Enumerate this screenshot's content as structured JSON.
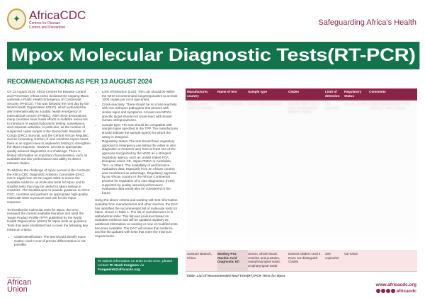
{
  "header": {
    "brand": "AfricaCDC",
    "brand_sub": "Centres for Disease Control and Prevention",
    "tagline": "Safeguarding Africa’s Health"
  },
  "title": "Mpox Molecular Diagnostic Tests(RT-PCR)",
  "subtitle": "RECOMMENDATIONS AS PER 13 AUGUST 2024",
  "col1": {
    "p1": "On 13 August 2024, Africa Centres for Disease Control and Prevention (Africa CDC) declared the ongoing Mpox outbreak a Public Health Emergency of Continental Security (PHECS). This was followed the next day by the World Health Organization (WHO), which extended the alert internationally as a public health emergency of international concern (PHEIC). After these declarations, many countries have made efforts to mobilize resources to introduce or expand laboratory testing, surveillance, and response activities. In particular, as the number of suspected cases surges in the Democratic Republic of Congo (DRC), Burundi, and the Central African Republic, and an increasing number of new countries report cases, there is an urgent need to implement testing to strengthen the Mpox response. However, access to appropriate quality assured diagnostics is a challenge. There is limited information on important characteristics, such as available test kits' performance and ability to detect relevant clades.",
    "p2": "To address the challenge of mpox access in the continent, the Africa CDC Diagnostic Advisory Committee (DAC) met in Kigali from 19-23 August 2024 to review the available evidence on molecular tests for Mpox and to shortlist tests that may be useful for Mpox testing in countries. The shortlist aims to provide guidance to Africa CDC, countries and partners on appropriate high-quality molecular tests to procure and use for the mpox response.",
    "p3": "To shortlist the molecular tests for Mpox, the DAC reviewed the current available literature and used the Target Product Profile (TPP) published by the World Health Organization (WHO) for Mpox tests as guidance. Tests that were shortlisted had to meet the following key minimum criteria:",
    "bullet": "Clade identification: The test should identify mpox clades I and II even if precise differentiation is not possible."
  },
  "col2": {
    "bullets": [
      "Limit of Detection (LoD): The LoD should be within the WHO recommended range(equivalent to at least 1000 copies per ml of specimen).",
      "Cross-reactivity: There should be no cross-reactivity with non-orthopox pathogens that present with similar signs and symptoms. At least one MPXV-specific target should not cross-react with known human orthopoxviruses.",
      "Sample type: The test should be compatible with sample types specified in the TPP. The manufacturer should indicate the sample type(s) for which the assay is designed.",
      "Regulatory status: The test should have regulatory approval or emergency use listing (for either in vitro diagnostic or research use) from at least one of the agencies recognized by the WHO as a stringent regulatory agency, such as United States FDA, European Union CE, Japan PMDA or Australian TGA, or others. The availability of performance evaluation data, especially from an African country, was considered an advantage. Regulatory approval by an African country or the African Continental process for regulation of in vitro diagnostics (IVDs) supported by quality assured performance evaluation data would also be considered in the future."
    ],
    "p": "Using the above criteria and working with test information available from manufacturers and other sources, the DAC has identified the recommended list of molecular tests for Mpox, shown in Table 1. The list of manufacturers is in alphabetical order. This list was produced based on available evidence and will be updated regularly as additional information on existing or new of modified tests becomes available. The DAC will review this evidence, and the list updated with tests that meet the minimum requirements.",
    "contact_pre": "To submit information on tests to the DAC, please contact ",
    "contact_name": "Dr Noah Fongwen",
    "contact_mid": " via ",
    "contact_email": "FongwenN@africacdc.org."
  },
  "table": {
    "headers": [
      "Manufacturer, country",
      "Name of test",
      "Sample type",
      "Clades",
      "Limit of detection",
      "Regulatory Status",
      "Comments"
    ],
    "faded_row": [
      "Abbott, United States of America",
      "ALINITY M MPXV",
      "Lesion swab specimens",
      "Detects clade I and II. Does not distinguish between clades.",
      "200 copies/ml",
      "EUA by US FDA",
      "Limited opportunity for cross-reactivity in silico analysis"
    ],
    "row": [
      "Sansure Biotech, China",
      "Monkey Pox Nucleic Acid Diagnostic Kit",
      "Serum, whole blood, vesicles and pustules, nasopharyngeal swab, oropharyngeal swab",
      "Detects clades I and II. Does not distinguish Clades",
      "200 copies/ml",
      "CE-IVDD",
      ""
    ],
    "caption": "Table: List of Recommended Real-Time(RT) PCR Tests for Mpox"
  },
  "footer": {
    "au_small": "An entity of the",
    "au": "African Union",
    "website": "www.africacdc.org",
    "handle": "africacdc",
    "social_icons": [
      "x-icon",
      "facebook-icon",
      "youtube-icon",
      "instagram-icon"
    ]
  }
}
